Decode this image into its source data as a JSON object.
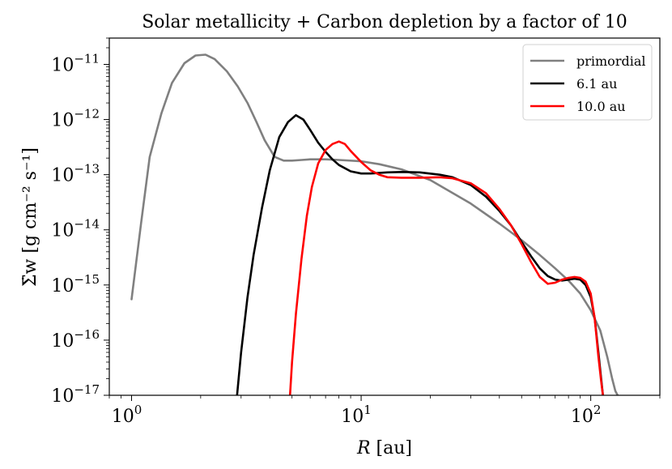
{
  "chart_data": {
    "type": "line",
    "title": "Solar metallicity + Carbon depletion by a factor of 10",
    "xlabel": "R [au]",
    "ylabel": "Σ̇w [g cm⁻² s⁻¹]",
    "xscale": "log",
    "yscale": "log",
    "xlim": [
      0.8,
      200
    ],
    "ylim": [
      1e-17,
      3e-11
    ],
    "x_ticks": [
      {
        "value": 1,
        "label": "10^0"
      },
      {
        "value": 10,
        "label": "10^1"
      },
      {
        "value": 100,
        "label": "10^2"
      }
    ],
    "y_ticks": [
      {
        "value": 1e-17,
        "label": "10^-17"
      },
      {
        "value": 1e-16,
        "label": "10^-16"
      },
      {
        "value": 1e-15,
        "label": "10^-15"
      },
      {
        "value": 1e-14,
        "label": "10^-14"
      },
      {
        "value": 1e-13,
        "label": "10^-13"
      },
      {
        "value": 1e-12,
        "label": "10^-12"
      },
      {
        "value": 1e-11,
        "label": "10^-11"
      }
    ],
    "legend_position": "top-right",
    "series": [
      {
        "name": "primordial",
        "color": "#808080",
        "x": [
          1.0,
          1.1,
          1.2,
          1.35,
          1.5,
          1.7,
          1.9,
          2.1,
          2.3,
          2.6,
          2.9,
          3.2,
          3.5,
          3.8,
          4.2,
          4.6,
          5.0,
          5.5,
          6.0,
          7.0,
          8.0,
          10.0,
          12.0,
          15.0,
          20.0,
          30.0,
          40.0,
          50.0,
          60.0,
          70.0,
          80.0,
          90.0,
          100.0,
          110.0,
          118.0,
          124.0,
          128.0,
          131.0
        ],
        "y": [
          5.5e-16,
          1.3e-14,
          2.1e-13,
          1.3e-12,
          4.6e-12,
          1.05e-11,
          1.45e-11,
          1.5e-11,
          1.25e-11,
          7.5e-12,
          4e-12,
          2e-12,
          9e-13,
          4.2e-13,
          2.1e-13,
          1.8e-13,
          1.8e-13,
          1.85e-13,
          1.9e-13,
          1.9e-13,
          1.85e-13,
          1.75e-13,
          1.55e-13,
          1.25e-13,
          8e-14,
          3e-14,
          1.3e-14,
          6.5e-15,
          3.5e-15,
          2e-15,
          1.2e-15,
          7e-16,
          3.5e-16,
          1.5e-16,
          5e-17,
          2e-17,
          1.2e-17,
          1e-17
        ]
      },
      {
        "name": "6.1 au",
        "color": "#000000",
        "x": [
          2.88,
          3.0,
          3.2,
          3.4,
          3.7,
          4.0,
          4.4,
          4.8,
          5.2,
          5.6,
          6.0,
          6.5,
          7.0,
          7.5,
          8.0,
          9.0,
          10.0,
          11.0,
          13.0,
          15.0,
          18.0,
          22.0,
          25.0,
          30.0,
          35.0,
          40.0,
          45.0,
          50.0,
          55.0,
          60.0,
          65.0,
          70.0,
          75.0,
          80.0,
          85.0,
          90.0,
          95.0,
          100.0,
          104.0,
          108.0,
          111.0,
          113.0
        ],
        "y": [
          1e-17,
          6e-17,
          6e-16,
          3.5e-15,
          2.5e-14,
          1.2e-13,
          4.8e-13,
          9e-13,
          1.2e-12,
          1e-12,
          6.5e-13,
          3.8e-13,
          2.6e-13,
          1.9e-13,
          1.5e-13,
          1.15e-13,
          1.05e-13,
          1.05e-13,
          1.1e-13,
          1.12e-13,
          1.1e-13,
          1e-13,
          9e-14,
          6.5e-14,
          4e-14,
          2.2e-14,
          1.2e-14,
          6e-15,
          3.3e-15,
          2e-15,
          1.45e-15,
          1.25e-15,
          1.2e-15,
          1.25e-15,
          1.3e-15,
          1.25e-15,
          1e-15,
          6e-16,
          2.5e-16,
          6e-17,
          2e-17,
          1e-17
        ]
      },
      {
        "name": "10.0 au",
        "color": "#ff0000",
        "x": [
          4.9,
          5.0,
          5.2,
          5.5,
          5.8,
          6.1,
          6.5,
          7.0,
          7.5,
          8.0,
          8.5,
          9.0,
          10.0,
          11.0,
          12.0,
          13.0,
          15.0,
          18.0,
          22.0,
          25.0,
          30.0,
          35.0,
          40.0,
          45.0,
          50.0,
          55.0,
          60.0,
          65.0,
          70.0,
          75.0,
          80.0,
          85.0,
          90.0,
          95.0,
          100.0,
          104.0,
          108.0,
          111.0,
          113.0
        ],
        "y": [
          1e-17,
          4e-17,
          3e-16,
          3e-15,
          1.8e-14,
          6e-14,
          1.6e-13,
          2.8e-13,
          3.6e-13,
          4e-13,
          3.6e-13,
          2.7e-13,
          1.7e-13,
          1.2e-13,
          1e-13,
          9e-14,
          8.8e-14,
          8.8e-14,
          9e-14,
          8.6e-14,
          7e-14,
          4.6e-14,
          2.4e-14,
          1.2e-14,
          5.5e-15,
          2.6e-15,
          1.4e-15,
          1.05e-15,
          1.1e-15,
          1.25e-15,
          1.35e-15,
          1.4e-15,
          1.35e-15,
          1.15e-15,
          7e-16,
          2.5e-16,
          5e-17,
          1.8e-17,
          1e-17
        ]
      }
    ]
  }
}
